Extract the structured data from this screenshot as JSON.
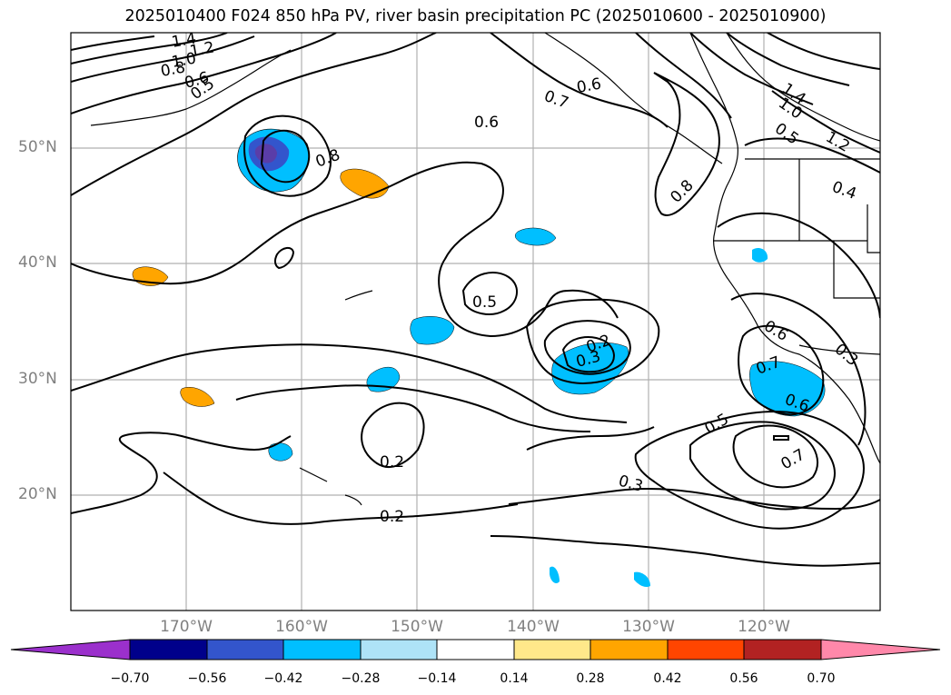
{
  "title": "2025010400 F024 850 hPa PV, river basin precipitation PC (2025010600 - 2025010900)",
  "lat_labels": [
    "50°N",
    "40°N",
    "30°N",
    "20°N"
  ],
  "lon_labels": [
    "170°W",
    "160°W",
    "150°W",
    "140°W",
    "130°W",
    "120°W"
  ],
  "contour_labels": [
    "1.4",
    "1.2",
    "1.0",
    "0.8",
    "0.6",
    "0.5",
    "0.8",
    "0.7",
    "0.6",
    "0.6",
    "0.8",
    "1.4",
    "1.0",
    "0.5",
    "1.2",
    "0.4",
    "0.5",
    "0.2",
    "0.3",
    "0.6",
    "0.3",
    "0.7",
    "0.6",
    "0.5",
    "0.7",
    "0.2",
    "0.2",
    "0.3"
  ],
  "colorbar": {
    "ticks": [
      "−0.70",
      "−0.56",
      "−0.42",
      "−0.28",
      "−0.14",
      "0.14",
      "0.28",
      "0.42",
      "0.56",
      "0.70"
    ],
    "colors": [
      "#9b30cc",
      "#00008b",
      "#3355cc",
      "#00bfff",
      "#aee3f7",
      "#ffffff",
      "#ffe88a",
      "#ffa500",
      "#ff4500",
      "#b22222",
      "#ff88aa"
    ]
  }
}
